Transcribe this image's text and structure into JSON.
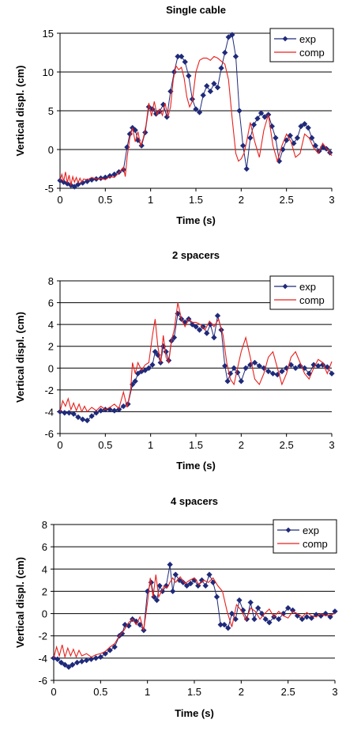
{
  "colors": {
    "exp": "#1f2a7a",
    "comp": "#e8201c",
    "grid": "#000000"
  },
  "chart_data": [
    {
      "type": "line",
      "title": "Single cable",
      "xlabel": "Time (s)",
      "ylabel": "Vertical displ. (cm)",
      "xlim": [
        0,
        3
      ],
      "ylim": [
        -5,
        15
      ],
      "xticks": [
        0,
        0.5,
        1,
        1.5,
        2,
        2.5,
        3
      ],
      "xtick_labels": [
        "0",
        "0.5",
        "1",
        "1.5",
        "2",
        "2.5",
        "3"
      ],
      "yticks": [
        -5,
        0,
        5,
        10,
        15
      ],
      "ytick_labels": [
        "-5",
        "0",
        "5",
        "10",
        "15"
      ],
      "grid": true,
      "legend": "top-right",
      "series": [
        {
          "name": "exp",
          "marker": "diamond",
          "x": [
            0,
            0.04,
            0.08,
            0.12,
            0.16,
            0.2,
            0.25,
            0.3,
            0.35,
            0.4,
            0.45,
            0.5,
            0.55,
            0.6,
            0.65,
            0.7,
            0.74,
            0.77,
            0.8,
            0.83,
            0.86,
            0.9,
            0.94,
            0.98,
            1.02,
            1.06,
            1.1,
            1.14,
            1.18,
            1.22,
            1.26,
            1.3,
            1.34,
            1.38,
            1.42,
            1.46,
            1.5,
            1.54,
            1.58,
            1.62,
            1.66,
            1.7,
            1.74,
            1.78,
            1.82,
            1.86,
            1.9,
            1.94,
            1.98,
            2.02,
            2.06,
            2.1,
            2.14,
            2.18,
            2.22,
            2.26,
            2.3,
            2.34,
            2.38,
            2.42,
            2.46,
            2.5,
            2.54,
            2.58,
            2.62,
            2.66,
            2.7,
            2.74,
            2.78,
            2.82,
            2.86,
            2.9,
            2.94,
            2.98
          ],
          "y": [
            -4,
            -4.2,
            -4.4,
            -4.6,
            -4.8,
            -4.5,
            -4.3,
            -4.1,
            -3.9,
            -3.8,
            -3.7,
            -3.6,
            -3.4,
            -3.2,
            -2.9,
            -2.6,
            0.3,
            2,
            2.8,
            2.5,
            1.2,
            0.5,
            2.2,
            5.5,
            5.2,
            4.6,
            4.9,
            5.8,
            4.2,
            7.5,
            10,
            12,
            12,
            11.3,
            9.5,
            6.5,
            5.2,
            4.8,
            7,
            8.2,
            7.5,
            8.5,
            8,
            10.5,
            12.5,
            14.5,
            14.8,
            12,
            5,
            0.5,
            -2.5,
            1.5,
            3.2,
            4,
            4.7,
            4.2,
            4.5,
            3,
            1.5,
            -1.5,
            0,
            1.2,
            1.8,
            0.8,
            1.5,
            3,
            3.3,
            2.8,
            1.5,
            0.5,
            -0.2,
            0.3,
            0.1,
            -0.4
          ]
        },
        {
          "name": "comp",
          "x": [
            0,
            0.02,
            0.04,
            0.06,
            0.08,
            0.1,
            0.12,
            0.14,
            0.16,
            0.18,
            0.2,
            0.22,
            0.24,
            0.26,
            0.3,
            0.35,
            0.4,
            0.45,
            0.5,
            0.55,
            0.6,
            0.65,
            0.7,
            0.72,
            0.74,
            0.77,
            0.8,
            0.83,
            0.86,
            0.89,
            0.92,
            0.95,
            0.98,
            1.01,
            1.04,
            1.07,
            1.1,
            1.13,
            1.16,
            1.19,
            1.22,
            1.25,
            1.28,
            1.31,
            1.34,
            1.37,
            1.4,
            1.43,
            1.46,
            1.5,
            1.54,
            1.58,
            1.62,
            1.66,
            1.7,
            1.74,
            1.78,
            1.82,
            1.86,
            1.9,
            1.94,
            1.97,
            2.0,
            2.03,
            2.06,
            2.1,
            2.15,
            2.2,
            2.25,
            2.3,
            2.35,
            2.4,
            2.45,
            2.5,
            2.55,
            2.6,
            2.65,
            2.7,
            2.75,
            2.8,
            2.85,
            2.9,
            2.95,
            3.0
          ],
          "y": [
            -4,
            -3.2,
            -4.1,
            -2.9,
            -4.3,
            -3.3,
            -4.6,
            -3.5,
            -4.2,
            -3.6,
            -4.3,
            -3.7,
            -4.2,
            -3.8,
            -3.9,
            -3.6,
            -3.8,
            -3.7,
            -3.9,
            -3.5,
            -3.6,
            -3.0,
            -2.3,
            -3.5,
            -1.0,
            1.5,
            2.8,
            1.0,
            2.3,
            0.5,
            1.5,
            3.2,
            6.0,
            4.3,
            6.2,
            4.5,
            5.2,
            4.4,
            6.0,
            4.2,
            5.5,
            9.0,
            10.8,
            10.3,
            10.6,
            9.2,
            6.8,
            5.5,
            6.2,
            10.0,
            11.5,
            11.8,
            11.8,
            11.5,
            12.0,
            11.8,
            11.4,
            11.0,
            9.0,
            4.0,
            -0.5,
            -1.5,
            -1.2,
            -0.5,
            1.0,
            3.5,
            1.0,
            -1.0,
            2.5,
            4.5,
            0.5,
            -1.5,
            0.5,
            2.0,
            1.0,
            -1.0,
            -0.5,
            2.0,
            1.5,
            0.2,
            -0.5,
            0.8,
            0.0,
            -0.8
          ]
        }
      ]
    },
    {
      "type": "line",
      "title": "2 spacers",
      "xlabel": "Time (s)",
      "ylabel": "Vertical displ. (cm)",
      "xlim": [
        0,
        3
      ],
      "ylim": [
        -6,
        8
      ],
      "xticks": [
        0,
        0.5,
        1,
        1.5,
        2,
        2.5,
        3
      ],
      "xtick_labels": [
        "0",
        "0.5",
        "1",
        "1.5",
        "2",
        "2.5",
        "3"
      ],
      "yticks": [
        -6,
        -4,
        -2,
        0,
        2,
        4,
        6,
        8
      ],
      "ytick_labels": [
        "-6",
        "-4",
        "-2",
        "0",
        "2",
        "4",
        "6",
        "8"
      ],
      "grid": true,
      "legend": "top-right",
      "series": [
        {
          "name": "exp",
          "marker": "diamond",
          "x": [
            0,
            0.05,
            0.1,
            0.15,
            0.2,
            0.25,
            0.3,
            0.35,
            0.4,
            0.45,
            0.5,
            0.55,
            0.6,
            0.65,
            0.7,
            0.75,
            0.8,
            0.83,
            0.86,
            0.9,
            0.94,
            0.98,
            1.02,
            1.05,
            1.08,
            1.11,
            1.14,
            1.17,
            1.2,
            1.23,
            1.26,
            1.3,
            1.34,
            1.38,
            1.42,
            1.46,
            1.5,
            1.54,
            1.58,
            1.62,
            1.66,
            1.7,
            1.74,
            1.78,
            1.82,
            1.85,
            1.88,
            1.92,
            1.96,
            2.0,
            2.05,
            2.1,
            2.15,
            2.2,
            2.25,
            2.3,
            2.35,
            2.4,
            2.45,
            2.5,
            2.55,
            2.6,
            2.65,
            2.7,
            2.75,
            2.8,
            2.85,
            2.9,
            2.95,
            3.0
          ],
          "y": [
            -4,
            -4.1,
            -4.1,
            -4.2,
            -4.5,
            -4.7,
            -4.8,
            -4.4,
            -4.1,
            -3.9,
            -3.8,
            -3.8,
            -3.9,
            -3.8,
            -3.5,
            -3.3,
            -1.5,
            -1.2,
            -0.5,
            -0.3,
            -0.2,
            0.0,
            0.3,
            1.5,
            1.2,
            0.5,
            2.0,
            1.5,
            0.7,
            2.5,
            2.8,
            5.0,
            4.5,
            4.2,
            4.5,
            4.0,
            3.8,
            3.5,
            3.8,
            3.2,
            4.0,
            2.8,
            4.8,
            3.5,
            0.2,
            -1.2,
            -0.5,
            0.0,
            -0.4,
            -1.2,
            0.0,
            0.3,
            0.5,
            0.2,
            0.0,
            -0.3,
            -0.5,
            -0.6,
            -0.3,
            0.0,
            0.3,
            0.0,
            0.2,
            0.0,
            -0.5,
            0.3,
            0.2,
            0.3,
            0.1,
            -0.5
          ]
        },
        {
          "name": "comp",
          "x": [
            0,
            0.03,
            0.06,
            0.09,
            0.12,
            0.15,
            0.18,
            0.21,
            0.24,
            0.27,
            0.3,
            0.35,
            0.4,
            0.45,
            0.5,
            0.55,
            0.6,
            0.65,
            0.7,
            0.74,
            0.78,
            0.8,
            0.83,
            0.86,
            0.9,
            0.94,
            0.98,
            1.02,
            1.05,
            1.08,
            1.11,
            1.14,
            1.17,
            1.2,
            1.23,
            1.26,
            1.3,
            1.34,
            1.38,
            1.42,
            1.46,
            1.5,
            1.55,
            1.6,
            1.65,
            1.7,
            1.75,
            1.8,
            1.84,
            1.88,
            1.92,
            1.96,
            2.0,
            2.05,
            2.1,
            2.15,
            2.2,
            2.25,
            2.3,
            2.35,
            2.4,
            2.45,
            2.5,
            2.55,
            2.6,
            2.65,
            2.7,
            2.75,
            2.8,
            2.85,
            2.9,
            2.95,
            3.0
          ],
          "y": [
            -4,
            -3.0,
            -3.5,
            -2.8,
            -3.8,
            -3.2,
            -3.9,
            -3.3,
            -4.0,
            -3.5,
            -4.0,
            -3.6,
            -3.9,
            -3.5,
            -3.8,
            -3.6,
            -3.3,
            -3.7,
            -2.2,
            -3.6,
            -2.0,
            0.5,
            -0.5,
            0.5,
            -0.2,
            0.3,
            0.5,
            3.0,
            4.5,
            2.0,
            0.5,
            3.0,
            1.0,
            0.5,
            2.5,
            3.5,
            6.0,
            4.5,
            3.8,
            4.5,
            4.2,
            4.2,
            4.0,
            3.5,
            4.3,
            3.8,
            4.5,
            3.0,
            0.5,
            -1.0,
            -1.5,
            0.0,
            1.5,
            2.8,
            1.0,
            -1.0,
            -1.5,
            -0.5,
            1.0,
            1.5,
            0.0,
            -1.5,
            -0.5,
            1.0,
            1.5,
            0.5,
            -0.5,
            -1.0,
            0.0,
            0.8,
            0.5,
            -0.5,
            0.6
          ]
        }
      ]
    },
    {
      "type": "line",
      "title": "4 spacers",
      "xlabel": "Time (s)",
      "ylabel": "Vertical displ. (cm)",
      "xlim": [
        0,
        3
      ],
      "ylim": [
        -6,
        8
      ],
      "xticks": [
        0,
        0.5,
        1,
        1.5,
        2,
        2.5,
        3
      ],
      "xtick_labels": [
        "0",
        "0.5",
        "1",
        "1.5",
        "2",
        "2.5",
        "3"
      ],
      "yticks": [
        -6,
        -4,
        -2,
        0,
        2,
        4,
        6,
        8
      ],
      "ytick_labels": [
        "-6",
        "-4",
        "-2",
        "0",
        "2",
        "4",
        "6",
        "8"
      ],
      "grid": true,
      "legend": "top-right",
      "series": [
        {
          "name": "exp",
          "marker": "diamond",
          "x": [
            0,
            0.04,
            0.08,
            0.12,
            0.16,
            0.2,
            0.25,
            0.3,
            0.35,
            0.4,
            0.45,
            0.5,
            0.55,
            0.6,
            0.65,
            0.7,
            0.73,
            0.76,
            0.8,
            0.84,
            0.88,
            0.92,
            0.96,
            1.0,
            1.04,
            1.07,
            1.1,
            1.13,
            1.16,
            1.2,
            1.24,
            1.27,
            1.3,
            1.34,
            1.38,
            1.42,
            1.46,
            1.5,
            1.54,
            1.58,
            1.62,
            1.66,
            1.7,
            1.74,
            1.78,
            1.82,
            1.86,
            1.9,
            1.94,
            1.98,
            2.02,
            2.06,
            2.1,
            2.14,
            2.18,
            2.22,
            2.26,
            2.3,
            2.35,
            2.4,
            2.45,
            2.5,
            2.55,
            2.6,
            2.65,
            2.7,
            2.75,
            2.8,
            2.85,
            2.9,
            2.95,
            3.0
          ],
          "y": [
            -4,
            -4.1,
            -4.4,
            -4.6,
            -4.8,
            -4.6,
            -4.4,
            -4.3,
            -4.2,
            -4.1,
            -4.0,
            -3.9,
            -3.6,
            -3.3,
            -3.0,
            -2.0,
            -1.8,
            -1.0,
            -1.1,
            -0.5,
            -0.7,
            -1.0,
            -1.5,
            2.0,
            2.8,
            1.5,
            1.2,
            2.5,
            2.0,
            2.5,
            4.4,
            2.0,
            3.5,
            3.0,
            2.8,
            2.5,
            2.7,
            3.0,
            2.5,
            3.0,
            2.5,
            3.5,
            2.8,
            1.5,
            -1.0,
            -1.0,
            -1.3,
            0.0,
            -0.5,
            1.2,
            0.3,
            -0.5,
            1.0,
            -0.5,
            0.5,
            0.0,
            -0.5,
            -0.8,
            -0.3,
            -0.5,
            0.0,
            0.5,
            0.3,
            -0.2,
            -0.5,
            -0.3,
            -0.4,
            -0.1,
            -0.2,
            0.0,
            -0.3,
            0.2
          ]
        },
        {
          "name": "comp",
          "x": [
            0,
            0.03,
            0.06,
            0.09,
            0.12,
            0.15,
            0.18,
            0.21,
            0.24,
            0.27,
            0.3,
            0.35,
            0.4,
            0.45,
            0.5,
            0.55,
            0.6,
            0.65,
            0.7,
            0.75,
            0.8,
            0.84,
            0.88,
            0.92,
            0.96,
            1.0,
            1.03,
            1.06,
            1.09,
            1.12,
            1.15,
            1.18,
            1.21,
            1.24,
            1.27,
            1.3,
            1.35,
            1.4,
            1.45,
            1.5,
            1.55,
            1.6,
            1.65,
            1.7,
            1.75,
            1.8,
            1.85,
            1.9,
            1.95,
            2.0,
            2.05,
            2.1,
            2.15,
            2.2,
            2.25,
            2.3,
            2.35,
            2.4,
            2.45,
            2.5,
            2.55,
            2.6,
            2.65,
            2.7,
            2.75,
            2.8,
            2.85,
            2.9,
            2.95,
            3.0
          ],
          "y": [
            -4,
            -3.0,
            -3.8,
            -2.8,
            -3.9,
            -3.1,
            -3.8,
            -3.2,
            -3.9,
            -3.3,
            -3.8,
            -3.6,
            -3.9,
            -3.7,
            -3.6,
            -3.4,
            -3.0,
            -2.7,
            -2.0,
            -1.5,
            -0.8,
            -0.5,
            -1.0,
            -0.3,
            -1.5,
            1.0,
            3.2,
            1.5,
            3.5,
            1.5,
            2.0,
            2.5,
            2.3,
            2.8,
            3.2,
            2.8,
            3.3,
            2.7,
            3.0,
            3.2,
            2.6,
            3.0,
            2.8,
            3.2,
            2.5,
            2.0,
            0.2,
            -1.2,
            0.8,
            0.3,
            -0.6,
            0.5,
            0.2,
            -0.5,
            0.0,
            0.4,
            -0.3,
            0.2,
            -0.2,
            -0.4,
            0.2,
            0.0,
            -0.3,
            0.1,
            -0.2,
            -0.3,
            0.0,
            -0.2,
            -0.1,
            0.0
          ]
        }
      ]
    }
  ]
}
